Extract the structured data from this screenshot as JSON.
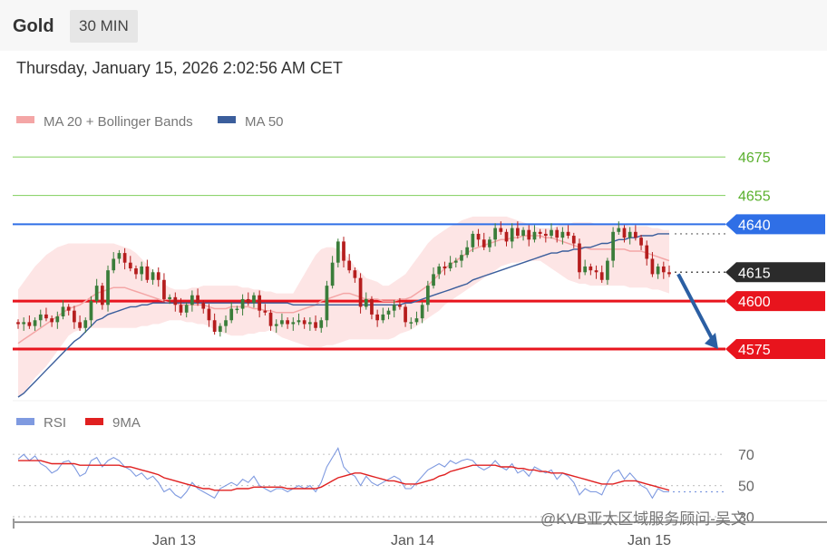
{
  "header": {
    "symbol": "Gold",
    "timeframe": "30 MIN"
  },
  "timestamp": "Thursday, January 15, 2026 2:02:56 AM CET",
  "watermark": "@KVB亚太区域服务顾问-吴文",
  "colors": {
    "up": "#3a7d3a",
    "down": "#b51d1d",
    "bollinger": "#fde0e0",
    "ma20": "#f4a6a6",
    "ma50": "#3b5e9c",
    "resistance_green": "#8fd46f",
    "level_blue": "#2f6fe6",
    "support_red": "#e8141d",
    "current_price": "#2b2b2b",
    "arrow": "#2b5fa3",
    "rsi": "#7f9ae0",
    "rsi_ma": "#e02020"
  },
  "chart_data": [
    {
      "type": "candlestick",
      "legend": [
        {
          "label": "MA 20 + Bollinger Bands",
          "color": "#f4a6a6"
        },
        {
          "label": "MA 50",
          "color": "#3b5e9c"
        }
      ],
      "x_ticks": [
        "Jan 13",
        "Jan 14",
        "Jan 15"
      ],
      "ylim": [
        4550,
        4685
      ],
      "levels": [
        {
          "label": "4675",
          "value": 4675,
          "kind": "resistance"
        },
        {
          "label": "4655",
          "value": 4655,
          "kind": "resistance"
        },
        {
          "label": "4640",
          "value": 4640,
          "kind": "key"
        },
        {
          "label": "4615",
          "value": 4615,
          "kind": "current"
        },
        {
          "label": "4600",
          "value": 4600,
          "kind": "support"
        },
        {
          "label": "4575",
          "value": 4575,
          "kind": "support"
        }
      ],
      "projection": {
        "from": 4614,
        "to": 4575
      },
      "closes": [
        4588,
        4589,
        4587,
        4590,
        4593,
        4591,
        4589,
        4592,
        4597,
        4595,
        4589,
        4586,
        4590,
        4600,
        4608,
        4598,
        4616,
        4622,
        4625,
        4620,
        4617,
        4614,
        4618,
        4611,
        4615,
        4611,
        4601,
        4602,
        4598,
        4594,
        4598,
        4603,
        4599,
        4596,
        4590,
        4584,
        4587,
        4590,
        4596,
        4596,
        4601,
        4599,
        4603,
        4595,
        4594,
        4587,
        4588,
        4590,
        4588,
        4589,
        4590,
        4588,
        4589,
        4586,
        4590,
        4608,
        4620,
        4631,
        4621,
        4616,
        4612,
        4597,
        4601,
        4593,
        4590,
        4593,
        4595,
        4598,
        4597,
        4589,
        4589,
        4591,
        4598,
        4608,
        4614,
        4618,
        4617,
        4620,
        4621,
        4624,
        4628,
        4635,
        4632,
        4628,
        4632,
        4638,
        4636,
        4631,
        4638,
        4634,
        4637,
        4632,
        4636,
        4635,
        4634,
        4637,
        4633,
        4636,
        4634,
        4630,
        4615,
        4618,
        4616,
        4615,
        4611,
        4621,
        4636,
        4638,
        4633,
        4636,
        4633,
        4629,
        4622,
        4614,
        4618,
        4615,
        4614
      ],
      "ma20": [
        4578,
        4580,
        4582,
        4584,
        4586,
        4588,
        4590,
        4592,
        4594,
        4596,
        4597,
        4598,
        4600,
        4602,
        4604,
        4605,
        4606,
        4607,
        4607,
        4607,
        4606,
        4605,
        4604,
        4603,
        4602,
        4601,
        4600,
        4599,
        4599,
        4598,
        4598,
        4598,
        4598,
        4598,
        4597,
        4596,
        4596,
        4596,
        4597,
        4597,
        4597,
        4597,
        4596,
        4596,
        4595,
        4595,
        4594,
        4594,
        4594,
        4594,
        4595,
        4596,
        4597,
        4598,
        4600,
        4601,
        4602,
        4603,
        4604,
        4604,
        4603,
        4602,
        4601,
        4601,
        4601,
        4600,
        4600,
        4600,
        4601,
        4601,
        4602,
        4604,
        4606,
        4608,
        4611,
        4614,
        4617,
        4619,
        4621,
        4623,
        4625,
        4627,
        4628,
        4629,
        4630,
        4631,
        4632,
        4632,
        4633,
        4633,
        4634,
        4634,
        4634,
        4634,
        4633,
        4633,
        4632,
        4631,
        4630,
        4629,
        4628,
        4628,
        4627,
        4627,
        4627,
        4627,
        4627,
        4627,
        4627,
        4626,
        4626,
        4626,
        4625,
        4624,
        4623,
        4622,
        4621
      ],
      "ma50": [
        4550,
        4552,
        4555,
        4558,
        4561,
        4564,
        4567,
        4570,
        4573,
        4576,
        4579,
        4581,
        4584,
        4587,
        4590,
        4591,
        4593,
        4594,
        4595,
        4596,
        4597,
        4597,
        4598,
        4598,
        4599,
        4599,
        4599,
        4599,
        4599,
        4599,
        4599,
        4599,
        4599,
        4599,
        4599,
        4599,
        4599,
        4599,
        4599,
        4599,
        4599,
        4599,
        4599,
        4599,
        4599,
        4599,
        4599,
        4599,
        4599,
        4598,
        4598,
        4598,
        4598,
        4598,
        4598,
        4598,
        4598,
        4598,
        4598,
        4598,
        4598,
        4598,
        4598,
        4598,
        4598,
        4598,
        4598,
        4598,
        4598,
        4599,
        4599,
        4600,
        4601,
        4602,
        4603,
        4604,
        4605,
        4606,
        4607,
        4608,
        4609,
        4611,
        4612,
        4613,
        4614,
        4615,
        4616,
        4617,
        4618,
        4619,
        4620,
        4621,
        4622,
        4623,
        4624,
        4625,
        4625,
        4626,
        4626,
        4627,
        4627,
        4628,
        4628,
        4629,
        4630,
        4630,
        4631,
        4632,
        4632,
        4633,
        4633,
        4634,
        4634,
        4634,
        4635,
        4635,
        4635
      ],
      "bb_upper": [
        4606,
        4610,
        4614,
        4618,
        4621,
        4624,
        4626,
        4628,
        4629,
        4630,
        4630,
        4630,
        4630,
        4630,
        4630,
        4630,
        4630,
        4630,
        4629,
        4628,
        4627,
        4625,
        4622,
        4619,
        4616,
        4612,
        4609,
        4607,
        4606,
        4606,
        4606,
        4607,
        4607,
        4608,
        4608,
        4608,
        4608,
        4608,
        4608,
        4608,
        4607,
        4607,
        4606,
        4606,
        4605,
        4605,
        4604,
        4604,
        4604,
        4604,
        4609,
        4614,
        4619,
        4624,
        4627,
        4628,
        4628,
        4627,
        4625,
        4622,
        4618,
        4615,
        4612,
        4611,
        4610,
        4608,
        4608,
        4610,
        4612,
        4614,
        4618,
        4622,
        4626,
        4630,
        4633,
        4635,
        4637,
        4639,
        4640,
        4642,
        4643,
        4644,
        4644,
        4644,
        4644,
        4644,
        4644,
        4644,
        4643,
        4642,
        4641,
        4640,
        4639,
        4638,
        4638,
        4638,
        4639,
        4640,
        4640,
        4641,
        4641,
        4641,
        4641,
        4640,
        4640,
        4640,
        4640,
        4640,
        4640,
        4639,
        4639,
        4639,
        4639,
        4638,
        4638,
        4637,
        4637
      ],
      "bb_lower": [
        4550,
        4552,
        4556,
        4560,
        4563,
        4566,
        4570,
        4574,
        4578,
        4582,
        4584,
        4585,
        4586,
        4586,
        4586,
        4586,
        4586,
        4586,
        4586,
        4586,
        4586,
        4586,
        4587,
        4587,
        4588,
        4588,
        4589,
        4590,
        4590,
        4590,
        4589,
        4589,
        4588,
        4588,
        4587,
        4585,
        4584,
        4583,
        4582,
        4582,
        4582,
        4583,
        4583,
        4584,
        4584,
        4585,
        4583,
        4581,
        4580,
        4579,
        4578,
        4577,
        4576,
        4576,
        4576,
        4577,
        4577,
        4578,
        4579,
        4580,
        4580,
        4580,
        4580,
        4580,
        4580,
        4580,
        4580,
        4581,
        4583,
        4584,
        4585,
        4587,
        4589,
        4591,
        4593,
        4595,
        4598,
        4600,
        4602,
        4604,
        4606,
        4608,
        4610,
        4612,
        4614,
        4616,
        4618,
        4619,
        4620,
        4620,
        4621,
        4621,
        4621,
        4621,
        4619,
        4617,
        4615,
        4613,
        4611,
        4610,
        4609,
        4609,
        4608,
        4608,
        4608,
        4608,
        4608,
        4608,
        4608,
        4607,
        4607,
        4607,
        4607,
        4606,
        4606,
        4605,
        4604
      ]
    },
    {
      "type": "line",
      "legend": [
        {
          "label": "RSI",
          "color": "#7f9ae0"
        },
        {
          "label": "9MA",
          "color": "#e02020"
        }
      ],
      "y_ticks": [
        "70",
        "50",
        "30"
      ],
      "ylim": [
        30,
        80
      ],
      "series": [
        {
          "name": "RSI",
          "values": [
            67,
            70,
            66,
            69,
            64,
            62,
            58,
            60,
            65,
            66,
            62,
            56,
            58,
            66,
            68,
            62,
            66,
            68,
            66,
            62,
            60,
            56,
            58,
            54,
            56,
            52,
            46,
            48,
            44,
            42,
            46,
            52,
            48,
            46,
            44,
            42,
            48,
            50,
            52,
            50,
            54,
            52,
            56,
            50,
            48,
            46,
            48,
            48,
            46,
            48,
            50,
            48,
            50,
            46,
            52,
            62,
            68,
            74,
            62,
            58,
            56,
            50,
            56,
            52,
            50,
            52,
            54,
            56,
            54,
            48,
            48,
            52,
            56,
            60,
            62,
            64,
            62,
            66,
            64,
            66,
            67,
            66,
            62,
            60,
            62,
            66,
            62,
            60,
            64,
            58,
            60,
            56,
            62,
            60,
            58,
            60,
            54,
            58,
            56,
            52,
            44,
            48,
            46,
            46,
            44,
            52,
            58,
            60,
            54,
            58,
            54,
            50,
            48,
            42,
            48,
            46,
            46
          ]
        },
        {
          "name": "9MA",
          "values": [
            66,
            66,
            66,
            66,
            66,
            65,
            64,
            64,
            64,
            64,
            64,
            63,
            63,
            63,
            63,
            63,
            63,
            63,
            63,
            62,
            62,
            61,
            60,
            59,
            58,
            57,
            55,
            54,
            53,
            52,
            51,
            50,
            49,
            48,
            48,
            47,
            47,
            47,
            47,
            48,
            48,
            48,
            49,
            49,
            49,
            49,
            49,
            49,
            48,
            48,
            48,
            48,
            48,
            48,
            49,
            51,
            53,
            55,
            56,
            57,
            58,
            58,
            57,
            56,
            55,
            54,
            53,
            53,
            52,
            51,
            51,
            51,
            52,
            53,
            54,
            56,
            57,
            59,
            60,
            61,
            62,
            63,
            63,
            63,
            63,
            63,
            62,
            62,
            62,
            61,
            61,
            60,
            60,
            59,
            59,
            58,
            58,
            58,
            57,
            56,
            55,
            54,
            53,
            52,
            51,
            51,
            51,
            52,
            53,
            53,
            53,
            52,
            51,
            50,
            49,
            48,
            47
          ]
        }
      ]
    }
  ]
}
